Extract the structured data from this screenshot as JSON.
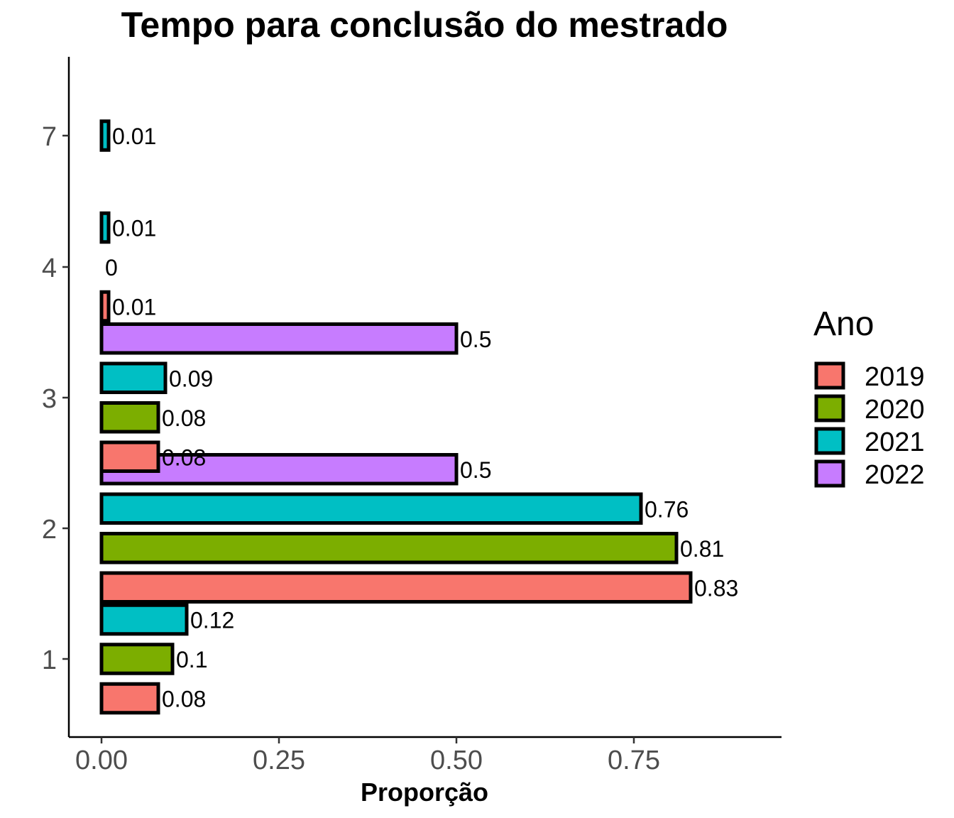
{
  "chart_data": {
    "type": "bar",
    "orientation": "horizontal",
    "title": "Tempo para conclusão do mestrado",
    "xlabel": "Proporção",
    "ylabel": "",
    "xlim": [
      0,
      0.95
    ],
    "x_ticks": [
      "0.00",
      "0.25",
      "0.50",
      "0.75"
    ],
    "x_tick_values": [
      0,
      0.25,
      0.5,
      0.75
    ],
    "categories": [
      "1",
      "2",
      "3",
      "4",
      "7"
    ],
    "legend": {
      "title": "Ano",
      "position": "right"
    },
    "grid": false,
    "series": [
      {
        "name": "2019",
        "color": "#F8766D",
        "values": [
          0.08,
          0.83,
          0.08,
          0.01,
          null
        ],
        "labels": [
          "0.08",
          "0.83",
          "0.08",
          "0.01",
          null
        ]
      },
      {
        "name": "2020",
        "color": "#7CAE00",
        "values": [
          0.1,
          0.81,
          0.08,
          0,
          null
        ],
        "labels": [
          "0.1",
          "0.81",
          "0.08",
          "0",
          null
        ]
      },
      {
        "name": "2021",
        "color": "#00BFC4",
        "values": [
          0.12,
          0.76,
          0.09,
          0.01,
          0.01
        ],
        "labels": [
          "0.12",
          "0.76",
          "0.09",
          "0.01",
          "0.01"
        ]
      },
      {
        "name": "2022",
        "color": "#C77CFF",
        "values": [
          null,
          0.5,
          0.5,
          null,
          null
        ],
        "labels": [
          null,
          "0.5",
          "0.5",
          null,
          null
        ]
      }
    ]
  }
}
